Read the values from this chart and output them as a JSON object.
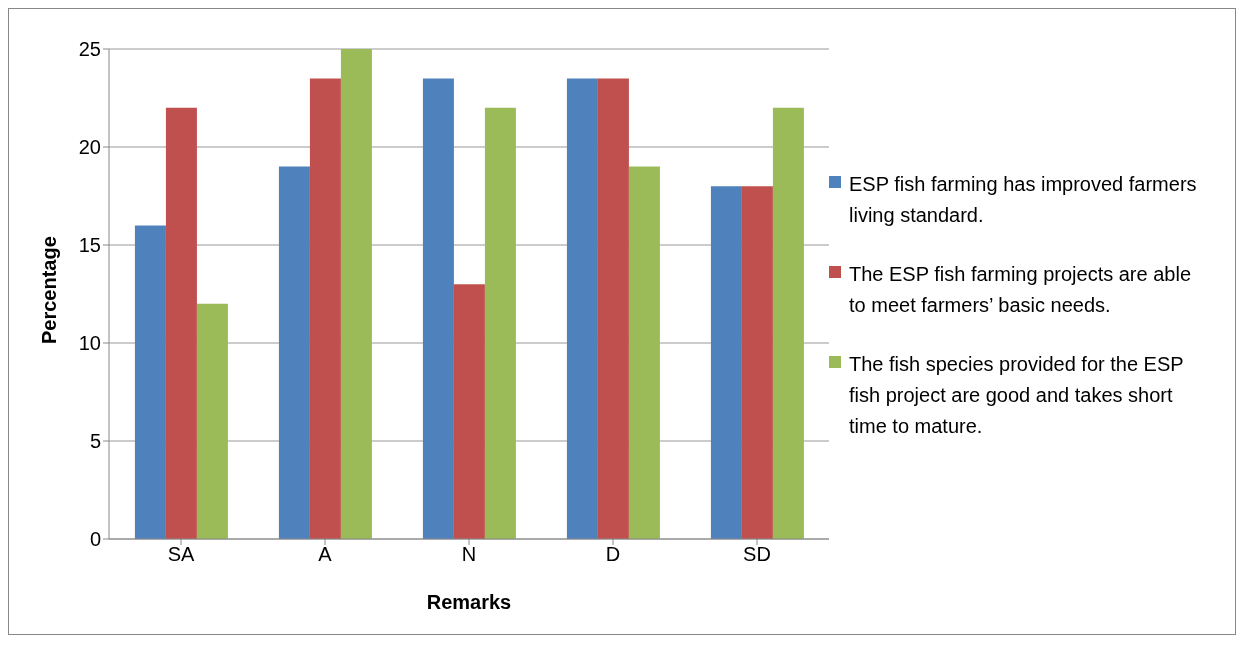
{
  "chart_data": {
    "type": "bar",
    "xlabel": "Remarks",
    "ylabel": "Percentage",
    "categories": [
      "SA",
      "A",
      "N",
      "D",
      "SD"
    ],
    "series": [
      {
        "name": "ESP fish farming has improved farmers living standard.",
        "color": "#4f81bd",
        "values": [
          16,
          19,
          23.5,
          23.5,
          18
        ]
      },
      {
        "name": "The ESP fish farming projects are able to meet farmers’ basic needs.",
        "color": "#c0504d",
        "values": [
          22,
          23.5,
          13,
          23.5,
          18
        ]
      },
      {
        "name": "The fish species provided for the ESP fish project are good and takes short time to mature.",
        "color": "#9bbb59",
        "values": [
          12,
          25,
          22,
          19,
          22
        ]
      }
    ],
    "ylim": [
      0,
      25
    ],
    "yticks": [
      0,
      5,
      10,
      15,
      20,
      25
    ],
    "grid": "y",
    "legend": "right"
  }
}
